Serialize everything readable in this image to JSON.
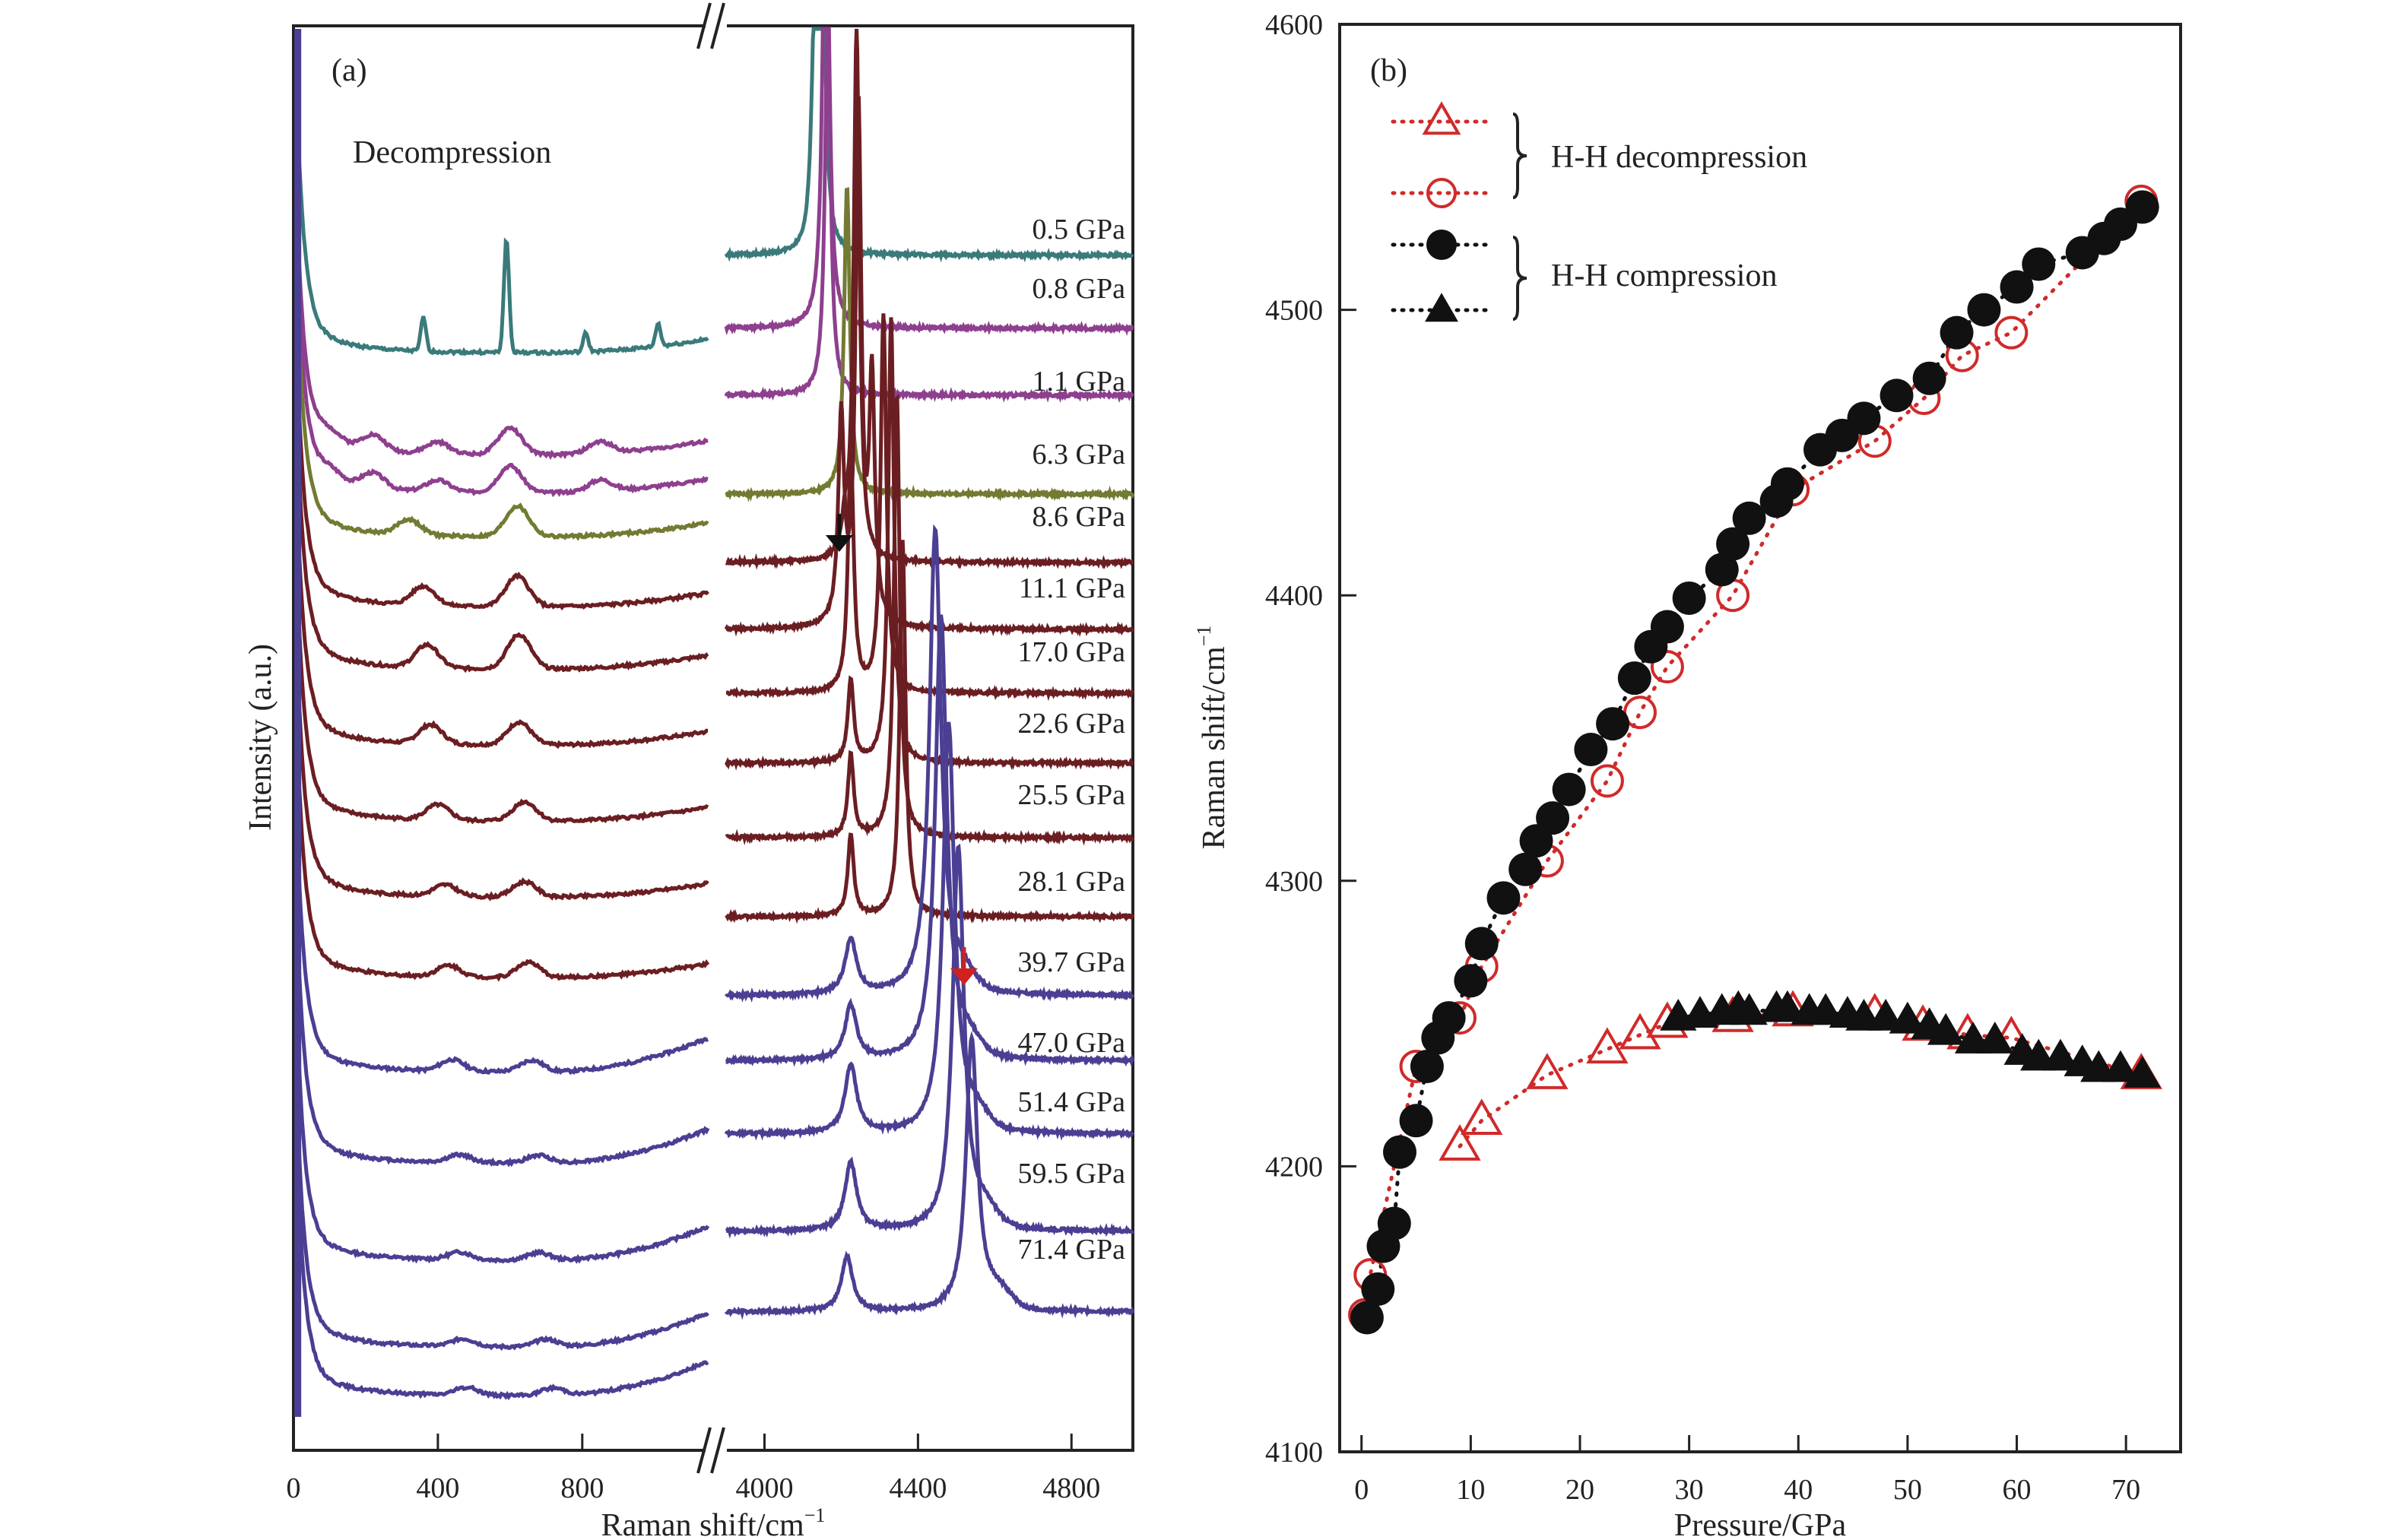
{
  "chart_data": [
    {
      "panel": "(a)",
      "type": "line",
      "title": "",
      "annotation": "Decompression",
      "xlabel": "Raman shift/cm",
      "xlabel_sup": "−1",
      "ylabel": "Intensity (a.u.)",
      "x_segments": [
        {
          "range": [
            0,
            1150
          ],
          "ticks": [
            0,
            400,
            800
          ],
          "tick_labels": [
            "0",
            "400",
            "800"
          ]
        },
        {
          "range": [
            3900,
            4960
          ],
          "ticks": [
            4000,
            4400,
            4800
          ],
          "tick_labels": [
            "4000",
            "4400",
            "4800"
          ]
        }
      ],
      "axis_break": true,
      "y_ticks": [],
      "series": [
        {
          "name": "0.5 GPa",
          "color": "#3a7a7a",
          "low_peaks": [
            [
              360,
              0.9
            ],
            [
              590,
              3.0
            ],
            [
              810,
              0.5
            ],
            [
              1010,
              0.6
            ]
          ],
          "vibron_peaks": [
            [
              4150,
              5.2
            ],
            [
              4130,
              3.0
            ]
          ],
          "extra_hump": false
        },
        {
          "name": "0.8 GPa",
          "color": "#8e3f8e",
          "low_peaks": [
            [
              100,
              0.3
            ],
            [
              220,
              0.4
            ],
            [
              400,
              0.3
            ],
            [
              600,
              0.7
            ],
            [
              850,
              0.3
            ]
          ],
          "vibron_peaks": [
            [
              4160,
              8.0
            ]
          ],
          "extra_hump": false
        },
        {
          "name": "1.1 GPa",
          "color": "#8e3f8e",
          "low_peaks": [
            [
              100,
              0.3
            ],
            [
              220,
              0.4
            ],
            [
              400,
              0.3
            ],
            [
              600,
              0.7
            ],
            [
              850,
              0.3
            ]
          ],
          "vibron_peaks": [
            [
              4165,
              5.5
            ]
          ],
          "extra_hump": false
        },
        {
          "name": "6.3 GPa",
          "color": "#737a32",
          "low_peaks": [
            [
              320,
              0.4
            ],
            [
              620,
              0.8
            ]
          ],
          "vibron_peaks": [
            [
              4215,
              4.5
            ]
          ],
          "extra_hump": false
        },
        {
          "name": "8.6 GPa",
          "color": "#6b1e22",
          "low_peaks": [
            [
              360,
              0.5
            ],
            [
              620,
              0.8
            ]
          ],
          "vibron_peaks": [
            [
              4240,
              7.8
            ],
            [
              4210,
              0.4
            ]
          ],
          "extra_hump": false
        },
        {
          "name": "11.1 GPa",
          "color": "#6b1e22",
          "low_peaks": [
            [
              370,
              0.6
            ],
            [
              625,
              0.9
            ]
          ],
          "vibron_peaks": [
            [
              4245,
              7.5
            ],
            [
              4280,
              3.5
            ],
            [
              4200,
              3.0
            ]
          ],
          "extra_hump": false
        },
        {
          "name": "17.0 GPa",
          "color": "#6b1e22",
          "low_peaks": [
            [
              380,
              0.5
            ],
            [
              625,
              0.6
            ]
          ],
          "vibron_peaks": [
            [
              4310,
              5.5
            ],
            [
              4225,
              3.5
            ]
          ],
          "extra_hump": false
        },
        {
          "name": "22.6 GPa",
          "color": "#6b1e22",
          "low_peaks": [
            [
              400,
              0.4
            ],
            [
              640,
              0.5
            ]
          ],
          "vibron_peaks": [
            [
              4330,
              6.5
            ],
            [
              4225,
              1.2
            ]
          ],
          "extra_hump": false
        },
        {
          "name": "25.5 GPa",
          "color": "#6b1e22",
          "low_peaks": [
            [
              420,
              0.3
            ],
            [
              640,
              0.4
            ]
          ],
          "vibron_peaks": [
            [
              4345,
              6.5
            ],
            [
              4225,
              1.2
            ]
          ],
          "extra_hump": false
        },
        {
          "name": "28.1 GPa",
          "color": "#6b1e22",
          "low_peaks": [
            [
              430,
              0.3
            ],
            [
              650,
              0.4
            ]
          ],
          "vibron_peaks": [
            [
              4360,
              5.5
            ],
            [
              4225,
              1.2
            ]
          ],
          "extra_hump": false
        },
        {
          "name": "39.7 GPa",
          "color": "#4a3f92",
          "low_peaks": [
            [
              440,
              0.3
            ],
            [
              660,
              0.3
            ]
          ],
          "vibron_peaks": [
            [
              4445,
              6.8
            ],
            [
              4225,
              0.8
            ]
          ],
          "extra_hump": true
        },
        {
          "name": "47.0 GPa",
          "color": "#4a3f92",
          "low_peaks": [
            [
              460,
              0.2
            ],
            [
              680,
              0.2
            ]
          ],
          "vibron_peaks": [
            [
              4460,
              6.5
            ],
            [
              4225,
              0.8
            ]
          ],
          "extra_hump": true
        },
        {
          "name": "51.4 GPa",
          "color": "#4a3f92",
          "low_peaks": [
            [
              460,
              0.2
            ],
            [
              680,
              0.2
            ]
          ],
          "vibron_peaks": [
            [
              4480,
              6.0
            ],
            [
              4225,
              1.0
            ]
          ],
          "extra_hump": true
        },
        {
          "name": "59.5 GPa",
          "color": "#4a3f92",
          "low_peaks": [
            [
              470,
              0.2
            ],
            [
              700,
              0.2
            ]
          ],
          "vibron_peaks": [
            [
              4505,
              5.6
            ],
            [
              4225,
              1.0
            ]
          ],
          "extra_hump": true
        },
        {
          "name": "71.4 GPa",
          "color": "#4a3f92",
          "low_peaks": [
            [
              480,
              0.2
            ],
            [
              720,
              0.2
            ]
          ],
          "vibron_peaks": [
            [
              4540,
              4.0
            ],
            [
              4215,
              0.8
            ]
          ],
          "extra_hump": true
        }
      ],
      "markers": [
        {
          "type": "arrow-down",
          "color": "#111111",
          "x": 4195,
          "series": "8.6 GPa"
        },
        {
          "type": "arrow-down",
          "color": "#d02020",
          "x": 4520,
          "series": "39.7 GPa"
        }
      ]
    },
    {
      "panel": "(b)",
      "type": "scatter",
      "title": "",
      "xlabel": "Pressure/GPa",
      "ylabel": "Raman shift/cm",
      "ylabel_sup": "−1",
      "xlim": [
        -2,
        75
      ],
      "ylim": [
        4100,
        4600
      ],
      "x_ticks": [
        0,
        10,
        20,
        30,
        40,
        50,
        60,
        70
      ],
      "y_ticks": [
        4100,
        4200,
        4300,
        4400,
        4500,
        4600
      ],
      "grid": false,
      "legend_position": "top-left",
      "legend_groups": [
        {
          "label": "H-H decompression",
          "series": [
            "decomp-triangles",
            "decomp-circles"
          ]
        },
        {
          "label": "H-H compression",
          "series": [
            "comp-circles",
            "comp-triangles"
          ]
        }
      ],
      "series": [
        {
          "id": "decomp-triangles",
          "name": "H-H decompression (triangle)",
          "marker": "triangle-open",
          "color": "#d02a2a",
          "x": [
            9,
            11,
            17,
            22.5,
            25.5,
            28,
            34,
            39.5,
            47,
            51.4,
            55.5,
            59.5,
            71.4
          ],
          "y": [
            4207,
            4216,
            4232,
            4241,
            4246,
            4250,
            4252,
            4254,
            4253,
            4249,
            4246,
            4245,
            4232
          ]
        },
        {
          "id": "decomp-circles",
          "name": "H-H decompression (circle)",
          "marker": "circle-open",
          "color": "#d02a2a",
          "x": [
            0.3,
            0.8,
            5,
            9,
            11,
            17,
            22.5,
            25.5,
            28,
            34,
            39.5,
            47,
            51.5,
            55,
            59.5,
            71.4
          ],
          "y": [
            4148,
            4162,
            4235,
            4252,
            4270,
            4307,
            4335,
            4359,
            4375,
            4400,
            4437,
            4454,
            4469,
            4484,
            4492,
            4538
          ]
        },
        {
          "id": "comp-circles",
          "name": "H-H compression (circle)",
          "marker": "circle-filled",
          "color": "#111111",
          "x": [
            0.5,
            1.5,
            2,
            3,
            3.5,
            5,
            6,
            7,
            8,
            10,
            11,
            13,
            15,
            16,
            17.5,
            19,
            21,
            23,
            25,
            26.5,
            28,
            30,
            33,
            34,
            35.5,
            38,
            39,
            42,
            44,
            46,
            49,
            52,
            54.5,
            57,
            60,
            62,
            66,
            68,
            69.5,
            71.5
          ],
          "y": [
            4147,
            4157,
            4172,
            4180,
            4205,
            4216,
            4235,
            4245,
            4252,
            4265,
            4278,
            4294,
            4304,
            4314,
            4322,
            4332,
            4346,
            4355,
            4371,
            4382,
            4389,
            4399,
            4409,
            4418,
            4427,
            4433,
            4439,
            4451,
            4456,
            4462,
            4470,
            4476,
            4492,
            4500,
            4508,
            4516,
            4520,
            4525,
            4530,
            4536
          ]
        },
        {
          "id": "comp-triangles",
          "name": "H-H compression (triangle)",
          "marker": "triangle-filled",
          "color": "#111111",
          "x": [
            29,
            31,
            33,
            34.5,
            35.5,
            38,
            39,
            41,
            42.5,
            44.5,
            46,
            48,
            50,
            52,
            53.5,
            56,
            58,
            60.5,
            62,
            64,
            66,
            67.5,
            69.5,
            71.5
          ],
          "y": [
            4252,
            4253,
            4254,
            4255,
            4254,
            4255,
            4255,
            4254,
            4254,
            4253,
            4252,
            4252,
            4251,
            4249,
            4247,
            4244,
            4244,
            4240,
            4238,
            4238,
            4236,
            4234,
            4234,
            4232
          ]
        }
      ]
    }
  ]
}
